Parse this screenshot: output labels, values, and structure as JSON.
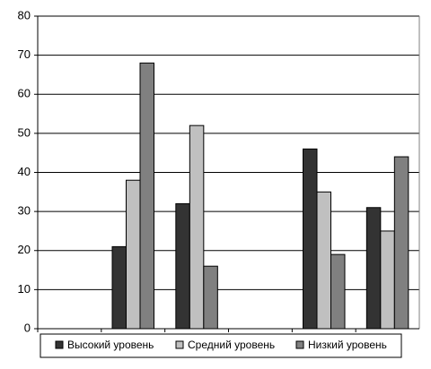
{
  "chart_data": {
    "type": "bar",
    "categories": [
      null,
      null,
      null,
      null,
      null,
      null
    ],
    "series": [
      {
        "name": "Высокий уровень",
        "color": "#333333",
        "values": [
          null,
          21,
          32,
          null,
          46,
          31
        ]
      },
      {
        "name": "Средний уровень",
        "color": "#c0c0c0",
        "values": [
          null,
          38,
          52,
          null,
          35,
          25
        ]
      },
      {
        "name": "Низкий уровень",
        "color": "#808080",
        "values": [
          null,
          68,
          16,
          null,
          19,
          44
        ]
      }
    ],
    "ylim": [
      0,
      80
    ],
    "yticks": [
      0,
      10,
      20,
      30,
      40,
      50,
      60,
      70,
      80
    ],
    "grid": true,
    "legend": "bottom"
  }
}
